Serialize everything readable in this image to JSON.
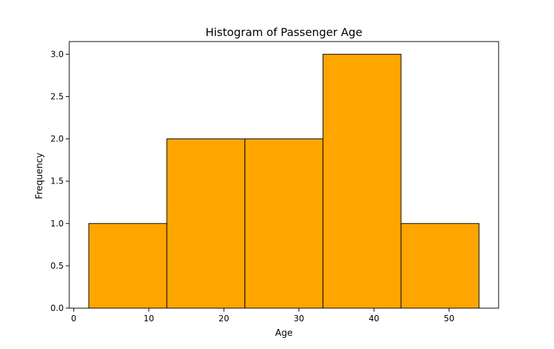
{
  "chart_data": {
    "type": "bar",
    "title": "Histogram of Passenger Age",
    "xlabel": "Age",
    "ylabel": "Frequency",
    "bins": [
      {
        "x0": 2.0,
        "x1": 12.4,
        "value": 1
      },
      {
        "x0": 12.4,
        "x1": 22.8,
        "value": 2
      },
      {
        "x0": 22.8,
        "x1": 33.2,
        "value": 2
      },
      {
        "x0": 33.2,
        "x1": 43.6,
        "value": 3
      },
      {
        "x0": 43.6,
        "x1": 54.0,
        "value": 1
      }
    ],
    "xlim": [
      -0.6,
      56.6
    ],
    "ylim": [
      0,
      3.15
    ],
    "xticks": [
      0,
      10,
      20,
      30,
      40,
      50
    ],
    "xtick_labels": [
      "0",
      "10",
      "20",
      "30",
      "40",
      "50"
    ],
    "yticks": [
      0.0,
      0.5,
      1.0,
      1.5,
      2.0,
      2.5,
      3.0
    ],
    "ytick_labels": [
      "0.0",
      "0.5",
      "1.0",
      "1.5",
      "2.0",
      "2.5",
      "3.0"
    ],
    "grid": false,
    "colors": {
      "bar_fill": "#FFA500",
      "bar_edge": "#000000"
    }
  }
}
